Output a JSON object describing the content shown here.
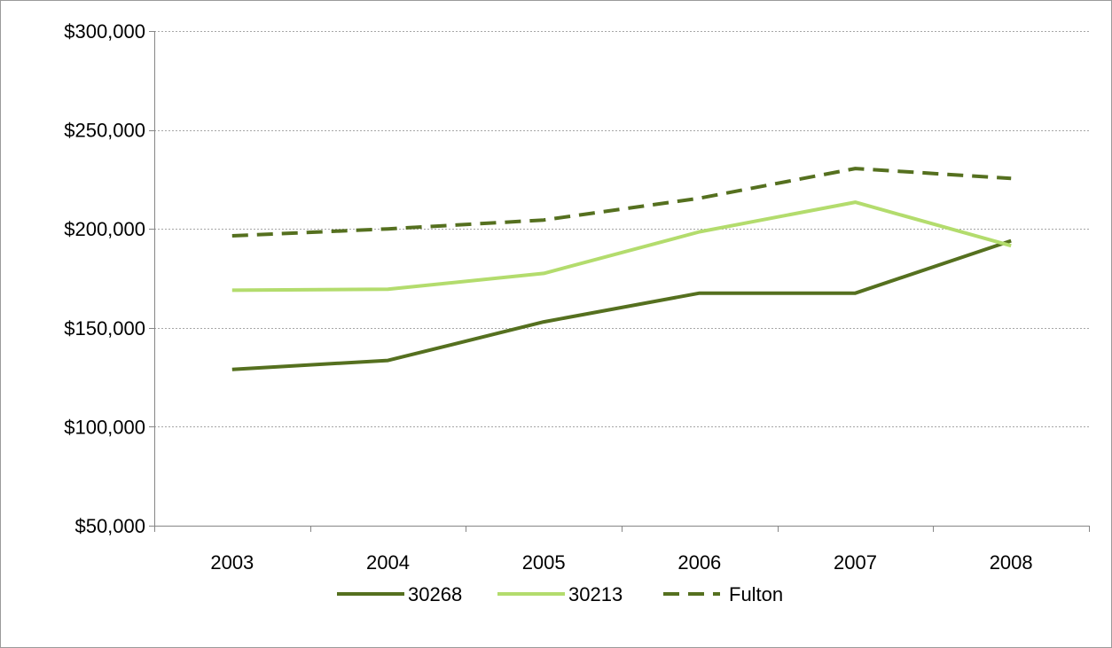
{
  "chart_data": {
    "type": "line",
    "title": "",
    "xlabel": "",
    "ylabel": "",
    "categories": [
      "2003",
      "2004",
      "2005",
      "2006",
      "2007",
      "2008"
    ],
    "ylim": [
      50000,
      300000
    ],
    "yticks": [
      50000,
      100000,
      150000,
      200000,
      250000,
      300000
    ],
    "ytick_labels": [
      "$50,000",
      "$100,000",
      "$150,000",
      "$200,000",
      "$250,000",
      "$300,000"
    ],
    "grid": true,
    "legend_position": "bottom",
    "series": [
      {
        "name": "30268",
        "values": [
          129000,
          133500,
          153000,
          167500,
          167500,
          194000
        ],
        "color": "#55701f",
        "dash": "solid"
      },
      {
        "name": "30213",
        "values": [
          169000,
          169500,
          177500,
          198500,
          213500,
          191500
        ],
        "color": "#b3dc6d",
        "dash": "solid"
      },
      {
        "name": "Fulton",
        "values": [
          196500,
          200000,
          204500,
          215500,
          230500,
          225500
        ],
        "color": "#55701f",
        "dash": "dashed"
      }
    ]
  }
}
